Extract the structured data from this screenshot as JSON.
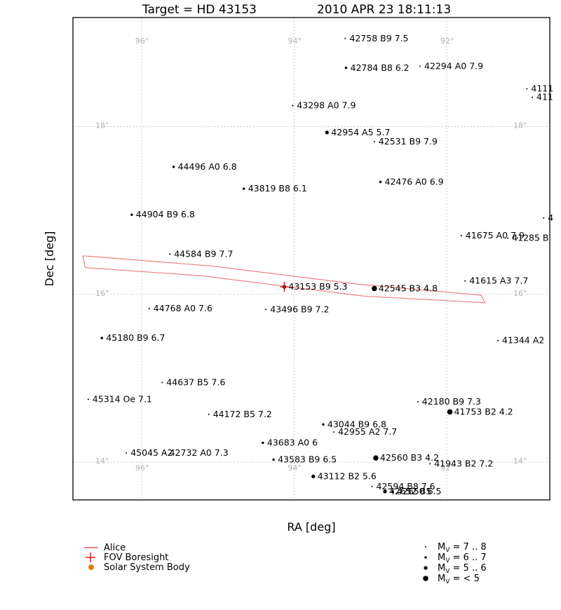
{
  "chart_data": {
    "type": "scatter",
    "title_target": "Target = HD 43153",
    "title_time": "2010 APR 23 18:11:13",
    "xlabel": "RA [deg]",
    "ylabel": "Dec [deg]",
    "xlim": [
      96.9,
      90.65
    ],
    "ylim": [
      13.55,
      19.3
    ],
    "x_inverted": true,
    "grid": true,
    "grid_color": "#b0b0b0",
    "ra_grid": [
      96,
      94,
      92
    ],
    "dec_grid": [
      18,
      16,
      14
    ],
    "ra_tick_labels": [
      "96°",
      "94°",
      "92°"
    ],
    "dec_tick_labels": [
      "18°",
      "16°",
      "14°"
    ],
    "boresight": {
      "ra": 94.13,
      "dec": 16.09,
      "color": "#dd1111"
    },
    "alice_outline": {
      "color": "#f08080",
      "points": [
        [
          96.77,
          16.46
        ],
        [
          95.1,
          16.34
        ],
        [
          93.15,
          16.12
        ],
        [
          91.55,
          15.99
        ],
        [
          91.5,
          15.9
        ],
        [
          93.1,
          15.98
        ],
        [
          95.2,
          16.22
        ],
        [
          96.74,
          16.32
        ]
      ]
    },
    "stars": [
      {
        "label": "42758 B9 7.5",
        "ra": 93.33,
        "dec": 19.05,
        "mag": 7.5
      },
      {
        "label": "42784 B8 6.2",
        "ra": 93.32,
        "dec": 18.7,
        "mag": 6.2
      },
      {
        "label": "42294 A0 7.9",
        "ra": 92.35,
        "dec": 18.72,
        "mag": 7.9
      },
      {
        "label": "43298 A0 7.9",
        "ra": 94.02,
        "dec": 18.25,
        "mag": 7.9
      },
      {
        "label": "42954 A5 5.7",
        "ra": 93.57,
        "dec": 17.93,
        "mag": 5.7
      },
      {
        "label": "42531 B9 7.9",
        "ra": 92.95,
        "dec": 17.82,
        "mag": 7.9
      },
      {
        "label": "44496 A0 6.8",
        "ra": 95.58,
        "dec": 17.52,
        "mag": 6.8
      },
      {
        "label": "43819 B8 6.1",
        "ra": 94.66,
        "dec": 17.26,
        "mag": 6.1
      },
      {
        "label": "42476 A0 6.9",
        "ra": 92.87,
        "dec": 17.34,
        "mag": 6.9
      },
      {
        "label": "44904 B9 6.8",
        "ra": 96.13,
        "dec": 16.95,
        "mag": 6.8
      },
      {
        "label": "41675 A0 7.9",
        "ra": 91.81,
        "dec": 16.7,
        "mag": 7.9
      },
      {
        "label": "44584 B9 7.7",
        "ra": 95.63,
        "dec": 16.48,
        "mag": 7.7
      },
      {
        "label": "43153 B9 5.3",
        "ra": 94.13,
        "dec": 16.09,
        "mag": 5.3
      },
      {
        "label": "42545 B3 4.8",
        "ra": 92.95,
        "dec": 16.07,
        "mag": 4.8
      },
      {
        "label": "41615 A3 7.7",
        "ra": 91.76,
        "dec": 16.16,
        "mag": 7.7
      },
      {
        "label": "44768 A0 7.6",
        "ra": 95.9,
        "dec": 15.83,
        "mag": 7.6
      },
      {
        "label": "43496 B9 7.2",
        "ra": 94.37,
        "dec": 15.82,
        "mag": 7.2
      },
      {
        "label": "45180 B9 6.7",
        "ra": 96.52,
        "dec": 15.48,
        "mag": 6.7
      },
      {
        "label": "41344 A2",
        "ra": 91.33,
        "dec": 15.45,
        "mag": 7.5
      },
      {
        "label": "44637 B5 7.6",
        "ra": 95.73,
        "dec": 14.95,
        "mag": 7.6
      },
      {
        "label": "45314 Oe 7.1",
        "ra": 96.7,
        "dec": 14.75,
        "mag": 7.1
      },
      {
        "label": "42180 B9 7.3",
        "ra": 92.38,
        "dec": 14.72,
        "mag": 7.3
      },
      {
        "label": "41753 B2 4.2",
        "ra": 91.96,
        "dec": 14.6,
        "mag": 4.2
      },
      {
        "label": "44172 B5 7.2",
        "ra": 95.12,
        "dec": 14.57,
        "mag": 7.2
      },
      {
        "label": "43044 B9 6.8",
        "ra": 93.62,
        "dec": 14.45,
        "mag": 6.8
      },
      {
        "label": "42955 A2 7.7",
        "ra": 93.48,
        "dec": 14.36,
        "mag": 7.7
      },
      {
        "label": "43683 A0 6",
        "ra": 94.41,
        "dec": 14.23,
        "mag": 6.0
      },
      {
        "label": "42560 B3 4.2",
        "ra": 92.93,
        "dec": 14.05,
        "mag": 4.2
      },
      {
        "label": "45045 A2",
        "ra": 96.2,
        "dec": 14.11,
        "mag": 7.4
      },
      {
        "label": "42732 A0 7.3",
        "ra": 95.69,
        "dec": 14.11,
        "mag": 7.3
      },
      {
        "label": "43583 B9 6.5",
        "ra": 94.27,
        "dec": 14.03,
        "mag": 6.5
      },
      {
        "label": "41943 B2 7.2",
        "ra": 92.22,
        "dec": 13.98,
        "mag": 7.2
      },
      {
        "label": "43112 B2 5.6",
        "ra": 93.75,
        "dec": 13.83,
        "mag": 5.6
      },
      {
        "label": "42594 B8 7.6",
        "ra": 92.98,
        "dec": 13.71,
        "mag": 7.6
      },
      {
        "label": "42652 B5",
        "ra": 92.81,
        "dec": 13.65,
        "mag": 5.5
      },
      {
        "label": "42650 6.5",
        "ra": 92.71,
        "dec": 13.65,
        "mag": 6.5
      },
      {
        "label": "4111",
        "ra": 90.95,
        "dec": 18.45,
        "mag": 7.8
      },
      {
        "label": "411",
        "ra": 90.88,
        "dec": 18.35,
        "mag": 7.8
      },
      {
        "label": "4",
        "ra": 90.73,
        "dec": 16.91,
        "mag": 7.8
      },
      {
        "label": "41285 B",
        "ra": 91.2,
        "dec": 16.67,
        "mag": 7.8
      }
    ],
    "legend": [
      {
        "label": "Alice",
        "kind": "line",
        "color": "#f08080"
      },
      {
        "label": "FOV Boresight",
        "kind": "cross",
        "color": "#dd1111"
      },
      {
        "label": "Solar System Body",
        "kind": "dot",
        "color": "#f07800"
      }
    ],
    "mag_legend": [
      {
        "range": "7 .. 8",
        "size": 1
      },
      {
        "range": "6 .. 7",
        "size": 1.7
      },
      {
        "range": "5 .. 6",
        "size": 2.6
      },
      {
        "range": "< 5",
        "size": 3.8
      }
    ],
    "mag_symbol": "M",
    "mag_subscript": "V",
    "mag_equals": " = "
  }
}
